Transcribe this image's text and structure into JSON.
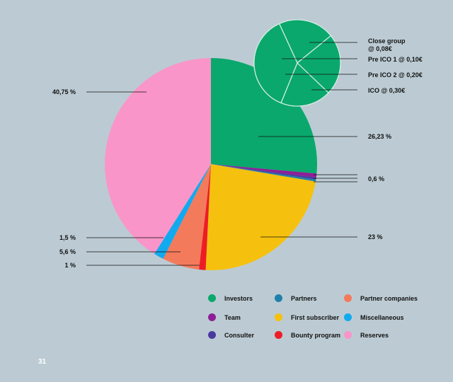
{
  "chart_data": [
    {
      "type": "pie",
      "title": "",
      "slices": [
        {
          "key": "investors",
          "name": "Investors",
          "label": "26,23 %",
          "value": 26.23,
          "color": "#0aa86d"
        },
        {
          "key": "team",
          "name": "Team",
          "label": "0,6 %",
          "value": 0.6,
          "color": "#8e1f97"
        },
        {
          "key": "consulter",
          "name": "Consulter",
          "label": "",
          "value": 0.3,
          "color": "#4a3aa0"
        },
        {
          "key": "partners",
          "name": "Partners",
          "label": "",
          "value": 0.3,
          "color": "#1f81aa"
        },
        {
          "key": "first-subscriber",
          "name": "First subscriber",
          "label": "23 %",
          "value": 23.0,
          "color": "#f5c10e"
        },
        {
          "key": "bounty",
          "name": "Bounty program",
          "label": "1 %",
          "value": 1.0,
          "color": "#ee1c24"
        },
        {
          "key": "partner-companies",
          "name": "Partner companies",
          "label": "5,6 %",
          "value": 5.6,
          "color": "#f47a5c"
        },
        {
          "key": "miscellaneous",
          "name": "Miscellaneous",
          "label": "1,5 %",
          "value": 1.5,
          "color": "#12aaee"
        },
        {
          "key": "reserves",
          "name": "Reserves",
          "label": "40,75 %",
          "value": 40.75,
          "color": "#f995c9"
        }
      ]
    },
    {
      "type": "pie",
      "title": "",
      "color": "#0aa86d",
      "slices": [
        {
          "key": "close-group",
          "label": "Close group @ 0,08€",
          "label_lines": [
            "Close group",
            "@ 0,08€"
          ],
          "value": 21
        },
        {
          "key": "pre-ico-1",
          "label": "Pre ICO 1 @ 0,10€",
          "label_lines": [
            "Pre ICO 1 @ 0,10€"
          ],
          "value": 23
        },
        {
          "key": "pre-ico-2",
          "label": "Pre ICO 2 @ 0,20€",
          "label_lines": [
            "Pre ICO 2 @ 0,20€"
          ],
          "value": 19
        },
        {
          "key": "ico",
          "label": "ICO @ 0,30€",
          "label_lines": [
            "ICO @ 0,30€"
          ],
          "value": 37
        }
      ]
    }
  ],
  "legend": [
    {
      "label": "Investors",
      "color": "#0aa86d"
    },
    {
      "label": "Team",
      "color": "#8e1f97"
    },
    {
      "label": "Consulter",
      "color": "#4a3aa0"
    },
    {
      "label": "Partners",
      "color": "#1f81aa"
    },
    {
      "label": "First subscriber",
      "color": "#f5c10e"
    },
    {
      "label": "Bounty program",
      "color": "#ee1c24"
    },
    {
      "label": "Partner companies",
      "color": "#f47a5c"
    },
    {
      "label": "Miscellaneous",
      "color": "#12aaee"
    },
    {
      "label": "Reserves",
      "color": "#f995c9"
    }
  ],
  "page_number": "31"
}
